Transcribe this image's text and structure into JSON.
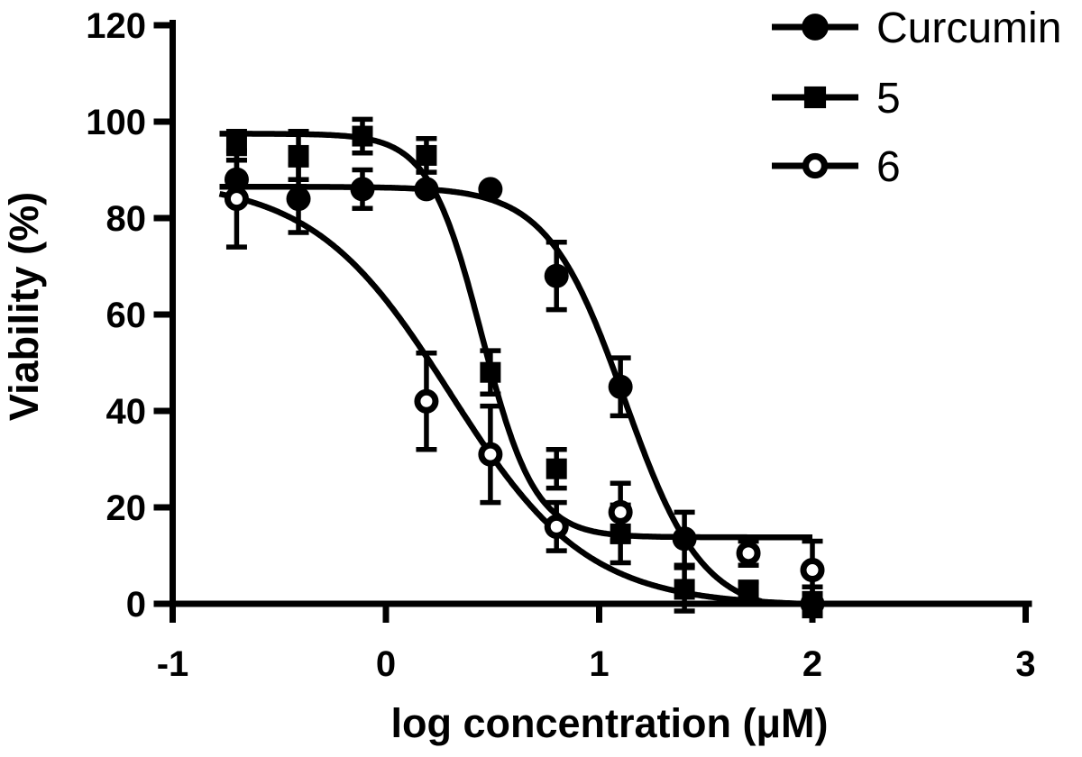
{
  "figure": {
    "background": "#ffffff",
    "ink": "#000000"
  },
  "chart_data": {
    "type": "scatter",
    "subtype": "dose-response-curves-with-error-bars",
    "title": "",
    "xlabel": "log concentration (μM)",
    "ylabel": "Viability (%)",
    "xlim": [
      -1,
      3
    ],
    "ylim": [
      0,
      120
    ],
    "x_ticks": [
      "-1",
      "0",
      "1",
      "2",
      "3"
    ],
    "x_tick_values": [
      -1,
      0,
      1,
      2,
      3
    ],
    "y_ticks": [
      "0",
      "20",
      "40",
      "60",
      "80",
      "100",
      "120"
    ],
    "y_tick_values": [
      0,
      20,
      40,
      60,
      80,
      100,
      120
    ],
    "grid": false,
    "legend_position": "top-right",
    "curve_model": "y = bottom + (top - bottom) / (1 + 10^((x - logIC50) * hill))",
    "series": [
      {
        "name": "Curcumin",
        "marker": "filled-circle",
        "points": [
          {
            "x": -0.7,
            "y": 88,
            "err": 4
          },
          {
            "x": -0.41,
            "y": 84,
            "err": 7
          },
          {
            "x": -0.11,
            "y": 86,
            "err": 4
          },
          {
            "x": 0.19,
            "y": 86,
            "err": 0
          },
          {
            "x": 0.49,
            "y": 86,
            "err": 0
          },
          {
            "x": 0.8,
            "y": 68,
            "err": 7
          },
          {
            "x": 1.1,
            "y": 45,
            "err": 6
          },
          {
            "x": 1.4,
            "y": 13.5,
            "err": 5.5
          },
          {
            "x": 2.0,
            "y": 0,
            "err": 2
          }
        ],
        "fit": {
          "top": 86.5,
          "bottom": -2,
          "logIC50": 1.12,
          "hill": 2.4
        }
      },
      {
        "name": "5",
        "marker": "filled-square",
        "points": [
          {
            "x": -0.7,
            "y": 95,
            "err": 3
          },
          {
            "x": -0.41,
            "y": 93,
            "err": 5
          },
          {
            "x": -0.11,
            "y": 97,
            "err": 3.5
          },
          {
            "x": 0.19,
            "y": 93,
            "err": 3.5
          },
          {
            "x": 0.49,
            "y": 48,
            "err": 4.5
          },
          {
            "x": 0.8,
            "y": 28,
            "err": 4
          },
          {
            "x": 1.1,
            "y": 14.5,
            "err": 6
          },
          {
            "x": 1.4,
            "y": 3,
            "err": 4.5
          },
          {
            "x": 1.7,
            "y": 2.5,
            "err": 2
          },
          {
            "x": 2.0,
            "y": 0.5,
            "err": 3
          }
        ],
        "fit": {
          "top": 97.5,
          "bottom": 13.8,
          "logIC50": 0.45,
          "hill": 3.5
        }
      },
      {
        "name": "6",
        "marker": "open-circle",
        "points": [
          {
            "x": -0.7,
            "y": 84,
            "err": 10
          },
          {
            "x": 0.19,
            "y": 42,
            "err": 10
          },
          {
            "x": 0.49,
            "y": 31,
            "err": 10
          },
          {
            "x": 0.8,
            "y": 16,
            "err": 5
          },
          {
            "x": 1.1,
            "y": 19,
            "err": 6
          },
          {
            "x": 1.7,
            "y": 10.5,
            "err": 2.5
          },
          {
            "x": 2.0,
            "y": 7,
            "err": 6
          }
        ],
        "fit": {
          "top": 88,
          "bottom": -0.5,
          "logIC50": 0.3,
          "hill": 1.35
        }
      }
    ]
  }
}
